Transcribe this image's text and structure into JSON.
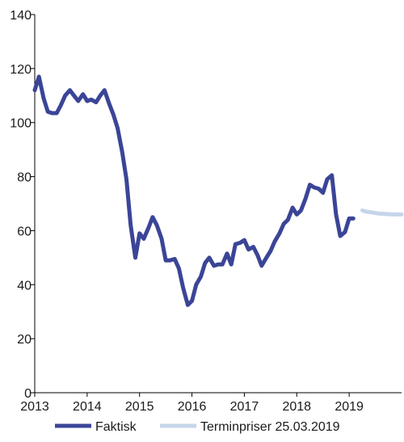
{
  "chart_data": {
    "type": "line",
    "title": "",
    "xlabel": "",
    "ylabel": "",
    "xlim": [
      2013,
      2020
    ],
    "ylim": [
      0,
      140
    ],
    "y_ticks": [
      0,
      20,
      40,
      60,
      80,
      100,
      120,
      140
    ],
    "x_ticks": [
      2013,
      2014,
      2015,
      2016,
      2017,
      2018,
      2019
    ],
    "y_tick_labels": [
      "0",
      "20",
      "40",
      "60",
      "80",
      "100",
      "120",
      "140"
    ],
    "x_tick_labels": [
      "2013",
      "2014",
      "2015",
      "2016",
      "2017",
      "2018",
      "2019"
    ],
    "grid": false,
    "legend_position": "bottom",
    "series": [
      {
        "name": "Faktisk",
        "color": "#3b4597",
        "x": [
          2013.0,
          2013.08,
          2013.17,
          2013.25,
          2013.33,
          2013.42,
          2013.5,
          2013.58,
          2013.67,
          2013.75,
          2013.83,
          2013.92,
          2014.0,
          2014.08,
          2014.17,
          2014.25,
          2014.33,
          2014.42,
          2014.5,
          2014.58,
          2014.67,
          2014.75,
          2014.83,
          2014.92,
          2015.0,
          2015.08,
          2015.17,
          2015.25,
          2015.33,
          2015.42,
          2015.5,
          2015.58,
          2015.67,
          2015.75,
          2015.83,
          2015.92,
          2016.0,
          2016.08,
          2016.17,
          2016.25,
          2016.33,
          2016.42,
          2016.5,
          2016.58,
          2016.67,
          2016.75,
          2016.83,
          2016.92,
          2017.0,
          2017.08,
          2017.17,
          2017.25,
          2017.33,
          2017.42,
          2017.5,
          2017.58,
          2017.67,
          2017.75,
          2017.83,
          2017.92,
          2018.0,
          2018.08,
          2018.17,
          2018.25,
          2018.33,
          2018.42,
          2018.5,
          2018.58,
          2018.67,
          2018.75,
          2018.83,
          2018.92,
          2019.0,
          2019.08
        ],
        "values": [
          112,
          117,
          109,
          104,
          103.5,
          103.5,
          106.5,
          110,
          112,
          110,
          108,
          110.5,
          108,
          108.5,
          107.5,
          110,
          112,
          107,
          103,
          98,
          89,
          79,
          62,
          50,
          59,
          57,
          61,
          65,
          62,
          57,
          49,
          49,
          49.5,
          46,
          39,
          32.5,
          34,
          40,
          43,
          48,
          50,
          47,
          47.5,
          47.5,
          51.5,
          47.5,
          55,
          55.5,
          56.5,
          53,
          54,
          51,
          47,
          50,
          52.5,
          56,
          59,
          62.5,
          64,
          68.5,
          66,
          67.5,
          72,
          77,
          76,
          75.5,
          74,
          79,
          80.5,
          66,
          58,
          59.5,
          64.5,
          64.5
        ]
      },
      {
        "name": "Terminpriser 25.03.2019",
        "color": "#c5d5ea",
        "x": [
          2019.25,
          2019.33,
          2019.42,
          2019.5,
          2019.58,
          2019.67,
          2019.75,
          2019.83,
          2019.92,
          2020.0
        ],
        "values": [
          67.5,
          67,
          66.8,
          66.5,
          66.3,
          66.2,
          66.1,
          66,
          66,
          66
        ]
      }
    ]
  }
}
